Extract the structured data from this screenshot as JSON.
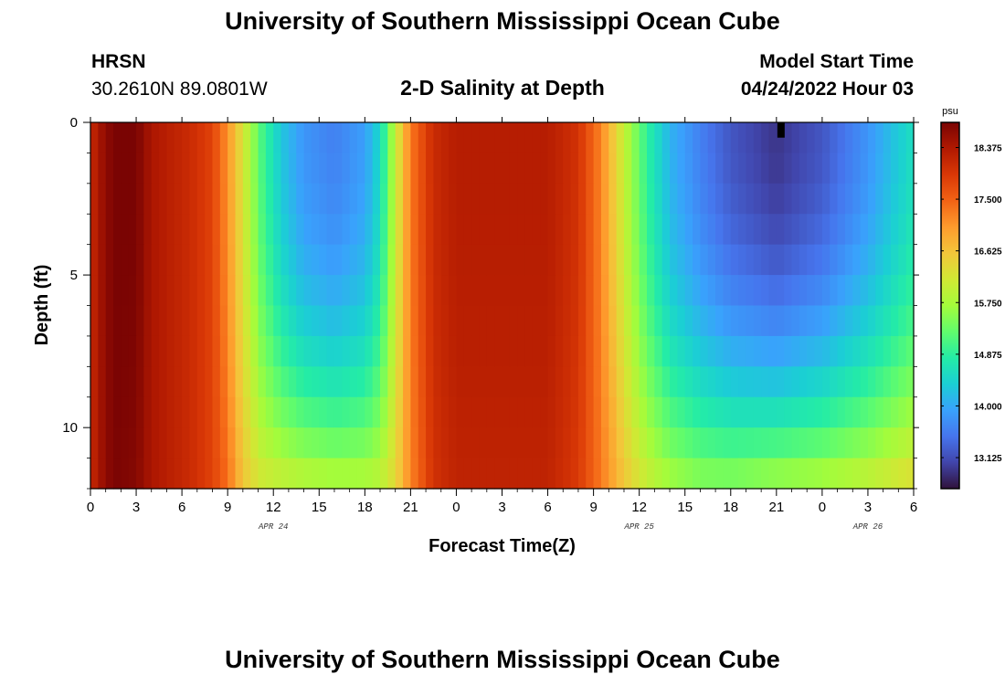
{
  "header": {
    "title": "University of Southern Mississippi Ocean Cube",
    "station": "HRSN",
    "coords": "30.2610N  89.0801W",
    "subtitle": "2-D Salinity at Depth",
    "model_start_label": "Model Start Time",
    "model_start_value": "04/24/2022 Hour 03"
  },
  "footer": {
    "title": "University of Southern Mississippi Ocean Cube"
  },
  "colors": {
    "stops": [
      "#30123b",
      "#4145ab",
      "#4675ed",
      "#39a2fc",
      "#1bcfd4",
      "#24eca6",
      "#61fc6c",
      "#a4fc3b",
      "#d1e834",
      "#f3c63a",
      "#fe9b2d",
      "#f36315",
      "#d93806",
      "#b11901",
      "#7a0403"
    ]
  },
  "chart_data": {
    "type": "heatmap",
    "title": "2-D Salinity at Depth",
    "xlabel": "Forecast Time(Z)",
    "ylabel": "Depth (ft)",
    "x_tick_labels": [
      "0",
      "3",
      "6",
      "9",
      "12",
      "15",
      "18",
      "21",
      "0",
      "3",
      "6",
      "9",
      "12",
      "15",
      "18",
      "21",
      "0",
      "3",
      "6"
    ],
    "x_tick_hours": [
      0,
      3,
      6,
      9,
      12,
      15,
      18,
      21,
      24,
      27,
      30,
      33,
      36,
      39,
      42,
      45,
      48,
      51,
      54
    ],
    "date_labels": [
      {
        "label": "APR 24",
        "hour": 12
      },
      {
        "label": "APR 25",
        "hour": 36
      },
      {
        "label": "APR 26",
        "hour": 51
      }
    ],
    "xlim": [
      0,
      54
    ],
    "y_tick_labels": [
      "0",
      "5",
      "10"
    ],
    "y_tick_values": [
      0,
      5,
      10
    ],
    "ylim": [
      0,
      12
    ],
    "colorbar": {
      "unit": "psu",
      "min": 12.6,
      "max": 18.8,
      "tick_labels": [
        "18.375",
        "17.500",
        "16.625",
        "15.750",
        "14.875",
        "14.000",
        "13.125"
      ],
      "tick_values": [
        18.375,
        17.5,
        16.625,
        15.75,
        14.875,
        14.0,
        13.125
      ]
    },
    "time_profile": [
      {
        "hour": 0,
        "surface": 18.1,
        "bottom": 18.1
      },
      {
        "hour": 0.7,
        "surface": 18.5,
        "bottom": 18.5
      },
      {
        "hour": 1.5,
        "surface": 18.8,
        "bottom": 18.8
      },
      {
        "hour": 3.0,
        "surface": 18.8,
        "bottom": 18.7
      },
      {
        "hour": 4.0,
        "surface": 18.4,
        "bottom": 18.4
      },
      {
        "hour": 6.5,
        "surface": 18.1,
        "bottom": 18.1
      },
      {
        "hour": 8.0,
        "surface": 17.8,
        "bottom": 17.8
      },
      {
        "hour": 9.0,
        "surface": 17.1,
        "bottom": 17.4
      },
      {
        "hour": 10.0,
        "surface": 16.2,
        "bottom": 16.6
      },
      {
        "hour": 11.2,
        "surface": 15.1,
        "bottom": 16.2
      },
      {
        "hour": 12.5,
        "surface": 14.3,
        "bottom": 16.1
      },
      {
        "hour": 14.0,
        "surface": 13.8,
        "bottom": 16.0
      },
      {
        "hour": 16.0,
        "surface": 13.6,
        "bottom": 15.9
      },
      {
        "hour": 18.0,
        "surface": 13.9,
        "bottom": 15.9
      },
      {
        "hour": 19.0,
        "surface": 14.5,
        "bottom": 16.0
      },
      {
        "hour": 20.0,
        "surface": 16.0,
        "bottom": 16.4
      },
      {
        "hour": 21.0,
        "surface": 17.3,
        "bottom": 17.2
      },
      {
        "hour": 22.5,
        "surface": 18.1,
        "bottom": 18.0
      },
      {
        "hour": 24.0,
        "surface": 18.3,
        "bottom": 18.2
      },
      {
        "hour": 30.0,
        "surface": 18.3,
        "bottom": 18.2
      },
      {
        "hour": 32.0,
        "surface": 18.0,
        "bottom": 17.9
      },
      {
        "hour": 33.5,
        "surface": 17.2,
        "bottom": 17.3
      },
      {
        "hour": 35.0,
        "surface": 16.0,
        "bottom": 16.6
      },
      {
        "hour": 36.5,
        "surface": 14.9,
        "bottom": 16.1
      },
      {
        "hour": 38.0,
        "surface": 14.1,
        "bottom": 15.8
      },
      {
        "hour": 40.0,
        "surface": 13.6,
        "bottom": 15.6
      },
      {
        "hour": 42.0,
        "surface": 13.2,
        "bottom": 15.6
      },
      {
        "hour": 45.0,
        "surface": 12.9,
        "bottom": 15.8
      },
      {
        "hour": 48.0,
        "surface": 13.2,
        "bottom": 15.9
      },
      {
        "hour": 51.0,
        "surface": 13.8,
        "bottom": 16.1
      },
      {
        "hour": 54.0,
        "surface": 14.6,
        "bottom": 16.4
      }
    ],
    "marker": {
      "hour": 45.3,
      "depth": 0.25,
      "value": 12.5
    }
  }
}
